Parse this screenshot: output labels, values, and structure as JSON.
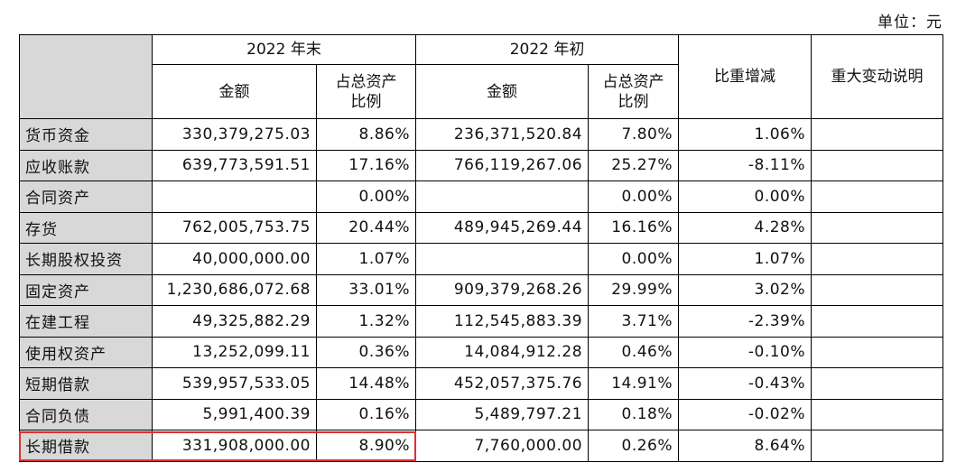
{
  "unit_label": "单位：元",
  "headers": {
    "year_end": "2022 年末",
    "year_begin": "2022 年初",
    "amount": "金额",
    "ratio_line1": "占总资产",
    "ratio_line2": "比例",
    "change": "比重增减",
    "explanation": "重大变动说明"
  },
  "rows": [
    {
      "label": "货币资金",
      "end_amount": "330,379,275.03",
      "end_ratio": "8.86%",
      "begin_amount": "236,371,520.84",
      "begin_ratio": "7.80%",
      "change": "1.06%",
      "note": ""
    },
    {
      "label": "应收账款",
      "end_amount": "639,773,591.51",
      "end_ratio": "17.16%",
      "begin_amount": "766,119,267.06",
      "begin_ratio": "25.27%",
      "change": "-8.11%",
      "note": ""
    },
    {
      "label": "合同资产",
      "end_amount": "",
      "end_ratio": "0.00%",
      "begin_amount": "",
      "begin_ratio": "0.00%",
      "change": "0.00%",
      "note": ""
    },
    {
      "label": "存货",
      "end_amount": "762,005,753.75",
      "end_ratio": "20.44%",
      "begin_amount": "489,945,269.44",
      "begin_ratio": "16.16%",
      "change": "4.28%",
      "note": ""
    },
    {
      "label": "长期股权投资",
      "end_amount": "40,000,000.00",
      "end_ratio": "1.07%",
      "begin_amount": "",
      "begin_ratio": "0.00%",
      "change": "1.07%",
      "note": ""
    },
    {
      "label": "固定资产",
      "end_amount": "1,230,686,072.68",
      "end_ratio": "33.01%",
      "begin_amount": "909,379,268.26",
      "begin_ratio": "29.99%",
      "change": "3.02%",
      "note": ""
    },
    {
      "label": "在建工程",
      "end_amount": "49,325,882.29",
      "end_ratio": "1.32%",
      "begin_amount": "112,545,883.39",
      "begin_ratio": "3.71%",
      "change": "-2.39%",
      "note": ""
    },
    {
      "label": "使用权资产",
      "end_amount": "13,252,099.11",
      "end_ratio": "0.36%",
      "begin_amount": "14,084,912.28",
      "begin_ratio": "0.46%",
      "change": "-0.10%",
      "note": ""
    },
    {
      "label": "短期借款",
      "end_amount": "539,957,533.05",
      "end_ratio": "14.48%",
      "begin_amount": "452,057,375.76",
      "begin_ratio": "14.91%",
      "change": "-0.43%",
      "note": ""
    },
    {
      "label": "合同负债",
      "end_amount": "5,991,400.39",
      "end_ratio": "0.16%",
      "begin_amount": "5,489,797.21",
      "begin_ratio": "0.18%",
      "change": "-0.02%",
      "note": ""
    },
    {
      "label": "长期借款",
      "end_amount": "331,908,000.00",
      "end_ratio": "8.90%",
      "begin_amount": "7,760,000.00",
      "begin_ratio": "0.26%",
      "change": "8.64%",
      "note": ""
    }
  ],
  "highlight_color": "#e03030",
  "label_background": "#d8d8d8"
}
